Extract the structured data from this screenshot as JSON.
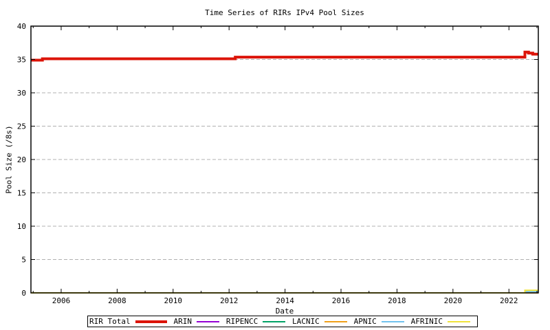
{
  "chart_data": {
    "type": "line",
    "title": "Time Series of RIRs IPv4 Pool Sizes",
    "xlabel": "Date",
    "ylabel": "Pool Size (/8s)",
    "xlim": [
      2004.92,
      2023.05
    ],
    "ylim": [
      0,
      40
    ],
    "x_major_ticks": [
      2006,
      2008,
      2010,
      2012,
      2014,
      2016,
      2018,
      2020,
      2022
    ],
    "x_minor_ticks": [
      2005,
      2007,
      2009,
      2011,
      2013,
      2015,
      2017,
      2019,
      2021,
      2023
    ],
    "y_ticks": [
      0,
      5,
      10,
      15,
      20,
      25,
      30,
      35,
      40
    ],
    "grid": {
      "horizontal": true,
      "vertical": false,
      "style": "dashed",
      "color": "#b0b0b0"
    },
    "legend_position": "below-plot",
    "series": [
      {
        "name": "RIR Total",
        "color": "#dc1408",
        "width": 4,
        "points": [
          [
            2004.92,
            34.9
          ],
          [
            2005.33,
            34.9
          ],
          [
            2005.33,
            35.1
          ],
          [
            2012.22,
            35.1
          ],
          [
            2012.22,
            35.35
          ],
          [
            2022.57,
            35.35
          ],
          [
            2022.57,
            36.1
          ],
          [
            2022.7,
            36.1
          ],
          [
            2022.7,
            35.95
          ],
          [
            2022.85,
            35.95
          ],
          [
            2022.85,
            35.8
          ],
          [
            2023.05,
            35.8
          ]
        ]
      },
      {
        "name": "ARIN",
        "color": "#9400d3",
        "width": 2,
        "points": [
          [
            2004.92,
            0
          ],
          [
            2023.05,
            0
          ]
        ]
      },
      {
        "name": "RIPENCC",
        "color": "#00a266",
        "width": 2,
        "points": [
          [
            2004.92,
            0
          ],
          [
            2023.05,
            0
          ]
        ]
      },
      {
        "name": "LACNIC",
        "color": "#efa018",
        "width": 2,
        "points": [
          [
            2004.92,
            0
          ],
          [
            2023.05,
            0
          ]
        ]
      },
      {
        "name": "APNIC",
        "color": "#70c2ee",
        "width": 2,
        "points": [
          [
            2004.92,
            0
          ],
          [
            2022.57,
            0
          ],
          [
            2022.57,
            0.18
          ],
          [
            2023.05,
            0.18
          ]
        ]
      },
      {
        "name": "AFRINIC",
        "color": "#efe33a",
        "width": 2,
        "points": [
          [
            2004.92,
            0
          ],
          [
            2022.57,
            0
          ],
          [
            2022.57,
            0.38
          ],
          [
            2023.05,
            0.38
          ]
        ]
      }
    ]
  }
}
